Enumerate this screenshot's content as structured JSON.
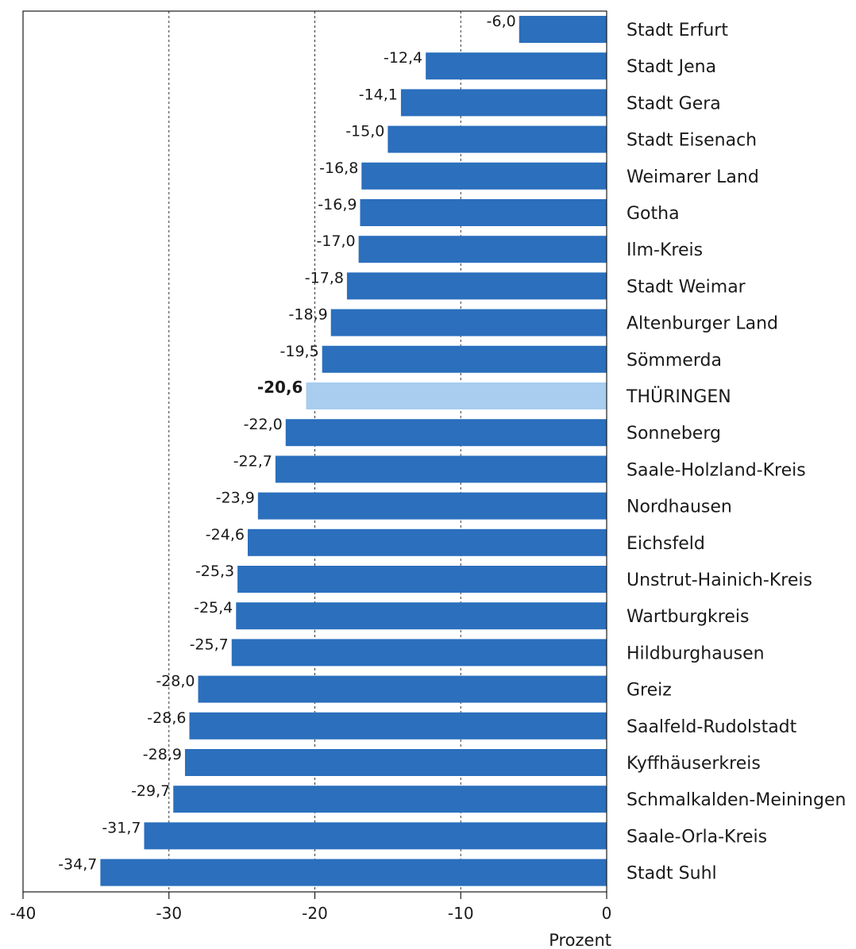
{
  "chart_data": {
    "type": "bar",
    "orientation": "horizontal",
    "categories": [
      "Stadt Erfurt",
      "Stadt Jena",
      "Stadt Gera",
      "Stadt Eisenach",
      "Weimarer Land",
      "Gotha",
      "Ilm-Kreis",
      "Stadt Weimar",
      "Altenburger Land",
      "Sömmerda",
      "THÜRINGEN",
      "Sonneberg",
      "Saale-Holzland-Kreis",
      "Nordhausen",
      "Eichsfeld",
      "Unstrut-Hainich-Kreis",
      "Wartburgkreis",
      "Hildburghausen",
      "Greiz",
      "Saalfeld-Rudolstadt",
      "Kyffhäuserkreis",
      "Schmalkalden-Meiningen",
      "Saale-Orla-Kreis",
      "Stadt Suhl"
    ],
    "values": [
      -6.0,
      -12.4,
      -14.1,
      -15.0,
      -16.8,
      -16.9,
      -17.0,
      -17.8,
      -18.9,
      -19.5,
      -20.6,
      -22.0,
      -22.7,
      -23.9,
      -24.6,
      -25.3,
      -25.4,
      -25.7,
      -28.0,
      -28.6,
      -28.9,
      -29.7,
      -31.7,
      -34.7
    ],
    "value_labels": [
      "-6,0",
      "-12,4",
      "-14,1",
      "-15,0",
      "-16,8",
      "-16,9",
      "-17,0",
      "-17,8",
      "-18,9",
      "-19,5",
      "-20,6",
      "-22,0",
      "-22,7",
      "-23,9",
      "-24,6",
      "-25,3",
      "-25,4",
      "-25,7",
      "-28,0",
      "-28,6",
      "-28,9",
      "-29,7",
      "-31,7",
      "-34,7"
    ],
    "highlight_category": "THÜRINGEN",
    "xlim": [
      -40,
      0
    ],
    "xticks": [
      -40,
      -30,
      -20,
      -10,
      0
    ],
    "xtick_labels": [
      "-40",
      "-30",
      "-20",
      "-10",
      "0"
    ],
    "xlabel": "Prozent",
    "grid": "vertical dashed at -30, -20, -10",
    "colors": {
      "bar": "#2b6fbd",
      "highlight": "#a8cdee",
      "grid": "#333333",
      "axis": "#1a1a1a"
    }
  }
}
